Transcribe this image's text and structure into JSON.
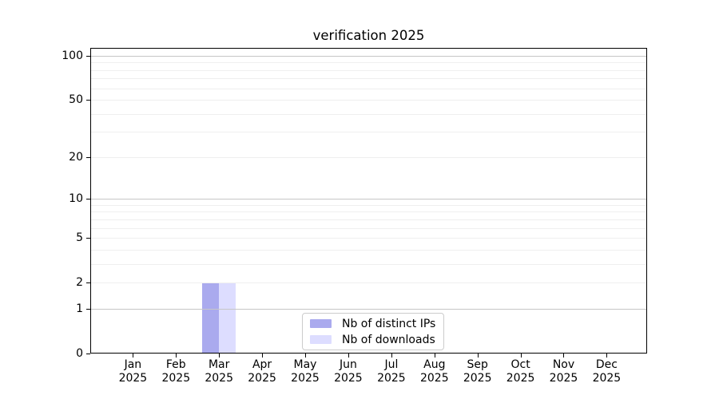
{
  "title": "verification 2025",
  "chart_data": {
    "type": "bar",
    "title": "verification 2025",
    "categories": [
      "Jan",
      "Feb",
      "Mar",
      "Apr",
      "May",
      "Jun",
      "Jul",
      "Aug",
      "Sep",
      "Oct",
      "Nov",
      "Dec"
    ],
    "category_year": "2025",
    "series": [
      {
        "name": "Nb of distinct IPs",
        "color": "#aaaaee",
        "values": [
          0,
          0,
          2,
          0,
          0,
          0,
          0,
          0,
          0,
          0,
          0,
          0
        ]
      },
      {
        "name": "Nb of downloads",
        "color": "#ddddff",
        "values": [
          0,
          0,
          2,
          0,
          0,
          0,
          0,
          0,
          0,
          0,
          0,
          0
        ]
      }
    ],
    "xlabel": "",
    "ylabel": "",
    "y_ticks": [
      0,
      1,
      2,
      5,
      10,
      20,
      50,
      100
    ],
    "y_scale": "log1p",
    "ylim": [
      0,
      113
    ],
    "grid": "horizontal",
    "grid_major_values": [
      1,
      10,
      100
    ],
    "grid_minor_values": [
      2,
      3,
      4,
      5,
      6,
      7,
      8,
      9,
      20,
      30,
      40,
      50,
      60,
      70,
      80,
      90
    ],
    "legend_position": "bottom-center"
  },
  "colors": {
    "bar_distinct_ips": "#aaaaee",
    "bar_downloads": "#ddddff",
    "grid_major": "#c6c6c6",
    "grid_minor": "#efefef",
    "axis": "#000000",
    "legend_border": "#cccccc",
    "text": "#000000",
    "background": "#ffffff"
  }
}
